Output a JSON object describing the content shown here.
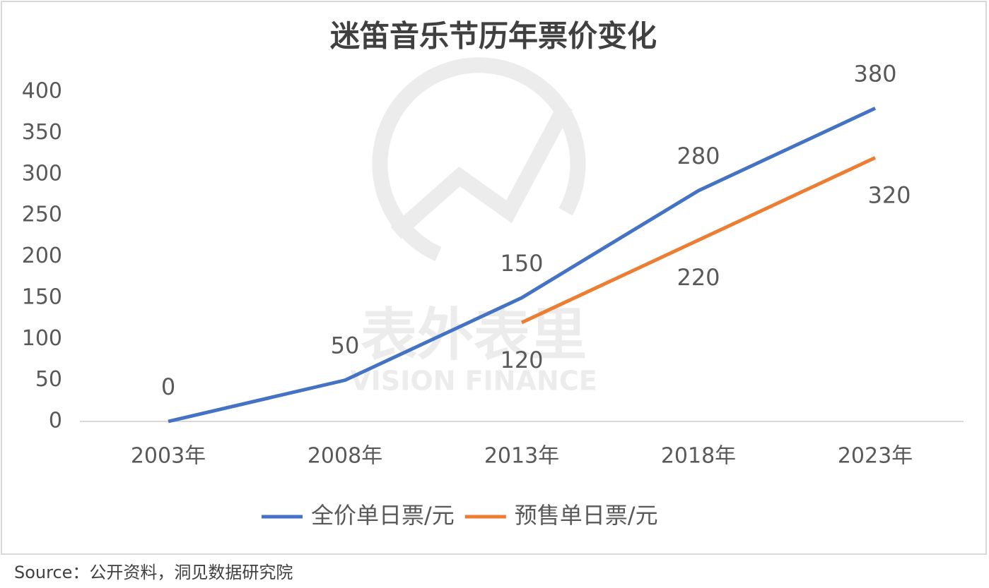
{
  "chart_data": {
    "type": "line",
    "title": "迷笛音乐节历年票价变化",
    "categories": [
      "2003年",
      "2008年",
      "2013年",
      "2018年",
      "2023年"
    ],
    "series": [
      {
        "name": "全价单日票/元",
        "color": "#4472c4",
        "values": [
          0,
          50,
          150,
          280,
          380
        ]
      },
      {
        "name": "预售单日票/元",
        "color": "#ed7d31",
        "values": [
          null,
          null,
          120,
          220,
          320
        ]
      }
    ],
    "ylim": [
      0,
      400
    ],
    "yticks": [
      0,
      50,
      100,
      150,
      200,
      250,
      300,
      350,
      400
    ],
    "grid": false,
    "legend": "bottom",
    "watermark": [
      "表外表里",
      "VISION FINANCE"
    ],
    "source": "Source：公开资料，洞见数据研究院"
  }
}
